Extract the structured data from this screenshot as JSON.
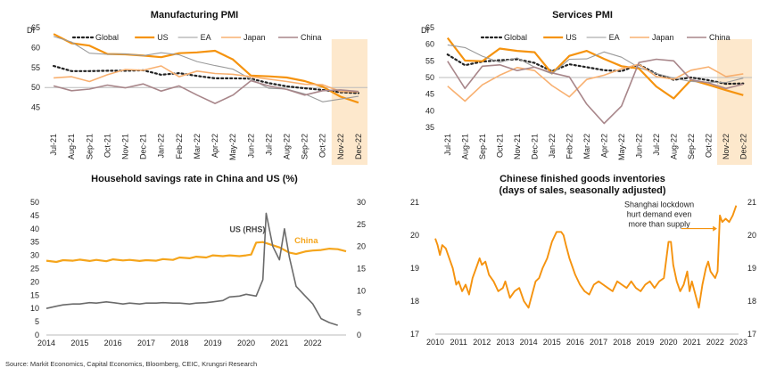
{
  "colors": {
    "global": "#222222",
    "us": "#f5930f",
    "ea": "#9a9a9a",
    "japan": "#f8b070",
    "china": "#a8868a",
    "shade": "#fde8cc",
    "axis": "#bbbbbb",
    "china_sav": "#f5a51c"
  },
  "source": "Source: Markit Economics, Capital Economics, Bloomberg, CEIC, Krungsri Research",
  "chart_data": [
    {
      "id": "mfg",
      "type": "line",
      "title": "Manufacturing PMI",
      "ylabel": "DI",
      "ylim": [
        40,
        65
      ],
      "yticks": [
        45,
        50,
        55,
        60,
        65
      ],
      "reference_line": 50,
      "shaded_categories": [
        "Nov-22",
        "Dec-22"
      ],
      "categories": [
        "Jul-21",
        "Aug-21",
        "Sep-21",
        "Oct-21",
        "Nov-21",
        "Dec-21",
        "Jan-22",
        "Feb-22",
        "Mar-22",
        "Apr-22",
        "May-22",
        "Jun-22",
        "Jul-22",
        "Aug-22",
        "Sep-22",
        "Oct-22",
        "Nov-22",
        "Dec-22"
      ],
      "tick_labels": [
        "Jul-21",
        "Aug-21",
        "Sep-21",
        "Oct-21",
        "Nov-21",
        "Dec-21",
        "Jan-22",
        "Feb-22",
        "Mar-22",
        "Apr-22",
        "May-22",
        "Jun-22",
        "Jul-22",
        "Aug-22",
        "Sep-22",
        "Oct-22",
        "Nov-22",
        "Dec-22"
      ],
      "legend": [
        "Global",
        "US",
        "EA",
        "Japan",
        "China"
      ],
      "series": [
        {
          "name": "Global",
          "key": "global",
          "dash": "2,3",
          "width": 2.2,
          "values": [
            55.4,
            54.1,
            54.1,
            54.2,
            54.2,
            54.3,
            53.2,
            53.6,
            52.9,
            52.3,
            52.3,
            52.2,
            51.1,
            50.3,
            49.8,
            49.4,
            48.8,
            48.6
          ]
        },
        {
          "name": "US",
          "key": "us",
          "width": 2.2,
          "values": [
            63.4,
            61.1,
            60.5,
            58.4,
            58.3,
            58.0,
            57.6,
            58.6,
            58.8,
            59.2,
            57.0,
            53.0,
            52.8,
            52.5,
            51.6,
            50.2,
            47.7,
            46.2
          ]
        },
        {
          "name": "EA",
          "key": "ea",
          "width": 1.1,
          "values": [
            62.8,
            61.4,
            58.6,
            58.3,
            58.4,
            58.0,
            58.7,
            58.2,
            56.5,
            55.5,
            54.6,
            52.1,
            49.8,
            49.6,
            48.4,
            46.4,
            47.1,
            47.8
          ]
        },
        {
          "name": "Japan",
          "key": "japan",
          "width": 1.6,
          "values": [
            52.4,
            52.7,
            51.5,
            53.2,
            54.5,
            54.3,
            55.4,
            52.7,
            54.1,
            53.5,
            53.3,
            52.7,
            52.1,
            51.5,
            50.8,
            50.7,
            49.0,
            48.9
          ]
        },
        {
          "name": "China",
          "key": "china",
          "width": 1.6,
          "values": [
            50.4,
            49.2,
            49.6,
            50.6,
            49.9,
            50.9,
            49.1,
            50.4,
            48.1,
            46.0,
            48.1,
            51.7,
            50.4,
            49.5,
            48.1,
            49.2,
            49.4,
            49.0
          ]
        }
      ]
    },
    {
      "id": "svc",
      "type": "line",
      "title": "Services PMI",
      "ylabel": "DI",
      "ylim": [
        35,
        65
      ],
      "yticks": [
        35,
        40,
        45,
        50,
        55,
        60,
        65
      ],
      "reference_line": 50,
      "shaded_categories": [
        "Nov-22",
        "Dec-22"
      ],
      "categories": [
        "Jul-21",
        "Aug-21",
        "Sep-21",
        "Oct-21",
        "Nov-21",
        "Dec-21",
        "Jan-22",
        "Feb-22",
        "Mar-22",
        "Apr-22",
        "May-22",
        "Jun-22",
        "Jul-22",
        "Aug-22",
        "Sep-22",
        "Oct-22",
        "Nov-22",
        "Dec-22"
      ],
      "tick_labels": [
        "Jul-21",
        "Aug-21",
        "Sep-21",
        "Oct-21",
        "Nov-21",
        "Dec-21",
        "Jan-22",
        "Feb-22",
        "Mar-22",
        "Apr-22",
        "May-22",
        "Jun-22",
        "Jul-22",
        "Aug-22",
        "Sep-22",
        "Oct-22",
        "Nov-22",
        "Dec-22"
      ],
      "legend": [
        "Global",
        "US",
        "EA",
        "Japan",
        "China"
      ],
      "series": [
        {
          "name": "Global",
          "key": "global",
          "dash": "2,3",
          "width": 2.2,
          "values": [
            56.9,
            53.7,
            54.8,
            55.2,
            55.5,
            54.4,
            51.9,
            54.0,
            53.1,
            52.2,
            51.9,
            53.9,
            51.1,
            49.3,
            50.0,
            49.2,
            48.1,
            48.2
          ]
        },
        {
          "name": "US",
          "key": "us",
          "width": 2.2,
          "values": [
            61.9,
            55.1,
            54.9,
            58.7,
            58.0,
            57.6,
            51.2,
            56.5,
            58.0,
            55.6,
            53.4,
            52.7,
            47.3,
            43.7,
            49.3,
            47.8,
            46.2,
            44.7
          ]
        },
        {
          "name": "EA",
          "key": "ea",
          "width": 1.1,
          "values": [
            59.8,
            59.0,
            56.4,
            54.6,
            55.9,
            53.1,
            51.1,
            55.5,
            55.6,
            57.7,
            56.1,
            53.0,
            51.2,
            49.8,
            48.8,
            48.6,
            48.5,
            49.8
          ]
        },
        {
          "name": "Japan",
          "key": "japan",
          "width": 1.6,
          "values": [
            47.4,
            42.9,
            47.8,
            50.7,
            53.0,
            52.1,
            47.6,
            44.2,
            49.4,
            50.7,
            52.6,
            54.0,
            50.3,
            49.5,
            52.2,
            53.2,
            50.3,
            51.1
          ]
        },
        {
          "name": "China",
          "key": "china",
          "width": 1.6,
          "values": [
            54.9,
            46.7,
            53.4,
            53.8,
            52.1,
            53.1,
            51.4,
            50.2,
            42.0,
            36.2,
            41.4,
            54.5,
            55.5,
            55.0,
            49.3,
            48.4,
            46.7,
            48.0
          ]
        }
      ]
    },
    {
      "id": "sav",
      "type": "line",
      "title": "Household savings rate in China and US (%)",
      "ylim": [
        0,
        50
      ],
      "yticks": [
        0,
        5,
        10,
        15,
        20,
        25,
        30,
        35,
        40,
        45,
        50
      ],
      "y2lim": [
        0,
        30
      ],
      "y2ticks": [
        0,
        5,
        10,
        15,
        20,
        25,
        30
      ],
      "xlim": [
        2014,
        2023
      ],
      "xticks": [
        2014,
        2015,
        2016,
        2017,
        2018,
        2019,
        2020,
        2021,
        2022
      ],
      "annotations": [
        "US (RHS)",
        "China"
      ],
      "series": [
        {
          "name": "China",
          "key": "china_sav",
          "axis": "left",
          "width": 2.2,
          "x": [
            2014,
            2014.3,
            2014.5,
            2014.8,
            2015,
            2015.3,
            2015.5,
            2015.8,
            2016,
            2016.3,
            2016.5,
            2016.8,
            2017,
            2017.3,
            2017.5,
            2017.8,
            2018,
            2018.3,
            2018.5,
            2018.8,
            2019,
            2019.3,
            2019.5,
            2019.8,
            2020,
            2020.15,
            2020.3,
            2020.5,
            2020.75,
            2021,
            2021.3,
            2021.5,
            2021.8,
            2022,
            2022.25,
            2022.5,
            2022.75,
            2023
          ],
          "y": [
            28,
            27.5,
            28.2,
            28,
            28.4,
            27.9,
            28.3,
            27.8,
            28.5,
            28.1,
            28.3,
            27.9,
            28.2,
            28.0,
            28.6,
            28.3,
            29.2,
            28.9,
            29.5,
            29.2,
            30.0,
            29.7,
            30.0,
            29.7,
            30.0,
            30.3,
            34.8,
            35.0,
            34.0,
            33.0,
            31.0,
            30.5,
            31.5,
            31.8,
            32.0,
            32.5,
            32.3,
            31.5
          ]
        },
        {
          "name": "US",
          "key": "global",
          "axis": "right",
          "width": 1.6,
          "x": [
            2014,
            2014.3,
            2014.5,
            2014.8,
            2015,
            2015.3,
            2015.5,
            2015.8,
            2016,
            2016.3,
            2016.5,
            2016.8,
            2017,
            2017.3,
            2017.5,
            2017.8,
            2018,
            2018.3,
            2018.5,
            2018.8,
            2019,
            2019.3,
            2019.5,
            2019.8,
            2020,
            2020.15,
            2020.3,
            2020.5,
            2020.6,
            2020.8,
            2021,
            2021.15,
            2021.3,
            2021.5,
            2021.75,
            2022,
            2022.25,
            2022.5,
            2022.75
          ],
          "y": [
            6,
            6.5,
            6.8,
            7,
            7,
            7.3,
            7.2,
            7.5,
            7.3,
            7.0,
            7.2,
            7.0,
            7.2,
            7.2,
            7.3,
            7.2,
            7.2,
            7.0,
            7.2,
            7.3,
            7.5,
            7.8,
            8.6,
            8.8,
            9.2,
            9.0,
            8.8,
            12.5,
            27.5,
            20,
            17,
            24,
            17.5,
            11,
            9,
            7,
            3.7,
            2.8,
            2.2
          ]
        }
      ]
    },
    {
      "id": "inv",
      "type": "line",
      "title": "Chinese finished goods inventories",
      "subtitle": "(days of sales, seasonally adjusted)",
      "ylim": [
        17,
        21
      ],
      "yticks": [
        17,
        18,
        19,
        20,
        21
      ],
      "xlim": [
        2010,
        2023
      ],
      "xticks": [
        2010,
        2011,
        2012,
        2013,
        2014,
        2015,
        2016,
        2017,
        2018,
        2019,
        2020,
        2021,
        2022,
        2023
      ],
      "annotation": [
        "Shanghai lockdown",
        "hurt demand even",
        "more than supply"
      ],
      "series": [
        {
          "name": "China",
          "key": "us",
          "width": 1.9,
          "x": [
            2010,
            2010.1,
            2010.2,
            2010.3,
            2010.45,
            2010.6,
            2010.75,
            2010.9,
            2011,
            2011.15,
            2011.3,
            2011.45,
            2011.6,
            2011.75,
            2011.9,
            2012,
            2012.15,
            2012.3,
            2012.5,
            2012.7,
            2012.9,
            2013,
            2013.2,
            2013.4,
            2013.6,
            2013.8,
            2014,
            2014.15,
            2014.3,
            2014.45,
            2014.6,
            2014.8,
            2015,
            2015.2,
            2015.4,
            2015.5,
            2015.6,
            2015.75,
            2015.9,
            2016,
            2016.2,
            2016.4,
            2016.6,
            2016.8,
            2017,
            2017.2,
            2017.4,
            2017.6,
            2017.8,
            2018,
            2018.2,
            2018.4,
            2018.6,
            2018.8,
            2019,
            2019.2,
            2019.4,
            2019.6,
            2019.8,
            2020,
            2020.1,
            2020.2,
            2020.35,
            2020.5,
            2020.65,
            2020.8,
            2020.9,
            2021,
            2021.15,
            2021.3,
            2021.45,
            2021.6,
            2021.7,
            2021.8,
            2021.9,
            2022,
            2022.1,
            2022.2,
            2022.3,
            2022.45,
            2022.6,
            2022.75,
            2022.9
          ],
          "y": [
            19.9,
            19.7,
            19.4,
            19.7,
            19.6,
            19.3,
            19.0,
            18.5,
            18.6,
            18.3,
            18.5,
            18.2,
            18.7,
            19.0,
            19.3,
            19.1,
            19.2,
            18.8,
            18.6,
            18.3,
            18.4,
            18.6,
            18.1,
            18.3,
            18.4,
            18.0,
            17.8,
            18.2,
            18.6,
            18.7,
            19.0,
            19.3,
            19.8,
            20.1,
            20.1,
            20.0,
            19.7,
            19.3,
            19.0,
            18.8,
            18.5,
            18.3,
            18.2,
            18.5,
            18.6,
            18.5,
            18.4,
            18.3,
            18.6,
            18.5,
            18.4,
            18.6,
            18.4,
            18.3,
            18.5,
            18.6,
            18.4,
            18.6,
            18.7,
            19.8,
            19.8,
            19.1,
            18.6,
            18.3,
            18.5,
            18.9,
            18.3,
            18.6,
            18.2,
            17.8,
            18.5,
            19.0,
            19.2,
            18.9,
            18.8,
            18.7,
            18.9,
            20.6,
            20.4,
            20.5,
            20.4,
            20.6,
            20.9
          ]
        }
      ]
    }
  ]
}
